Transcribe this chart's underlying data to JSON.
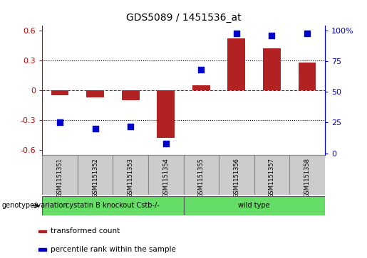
{
  "title": "GDS5089 / 1451536_at",
  "samples": [
    "GSM1151351",
    "GSM1151352",
    "GSM1151353",
    "GSM1151354",
    "GSM1151355",
    "GSM1151356",
    "GSM1151357",
    "GSM1151358"
  ],
  "bar_values": [
    -0.05,
    -0.07,
    -0.1,
    -0.48,
    0.05,
    0.52,
    0.42,
    0.28
  ],
  "dot_values": [
    25,
    20,
    22,
    8,
    68,
    98,
    96,
    98
  ],
  "bar_color": "#b22222",
  "dot_color": "#0000cc",
  "ylim_left": [
    -0.65,
    0.65
  ],
  "ylim_right": [
    -1.3,
    104
  ],
  "yticks_left": [
    -0.6,
    -0.3,
    0.0,
    0.3,
    0.6
  ],
  "yticks_right": [
    0,
    25,
    50,
    75,
    100
  ],
  "ytick_labels_left": [
    "-0.6",
    "-0.3",
    "0",
    "0.3",
    "0.6"
  ],
  "ytick_labels_right": [
    "0",
    "25",
    "50",
    "75",
    "100%"
  ],
  "hlines": [
    0.3,
    0.0,
    -0.3
  ],
  "hline_styles": [
    "dotted",
    "dashed",
    "dotted"
  ],
  "hline_colors": [
    "black",
    "#cc0000",
    "black"
  ],
  "group_info": [
    {
      "start": 0,
      "end": 3,
      "label": "cystatin B knockout Cstb-/-",
      "color": "#66dd66"
    },
    {
      "start": 4,
      "end": 7,
      "label": "wild type",
      "color": "#66dd66"
    }
  ],
  "group_row_label": "genotype/variation",
  "legend_items": [
    {
      "label": "transformed count",
      "color": "#b22222"
    },
    {
      "label": "percentile rank within the sample",
      "color": "#0000cc"
    }
  ],
  "tick_label_color_left": "#cc0000",
  "tick_label_color_right": "#0000cc",
  "bar_width": 0.5,
  "dot_size": 30,
  "background_color": "#ffffff"
}
